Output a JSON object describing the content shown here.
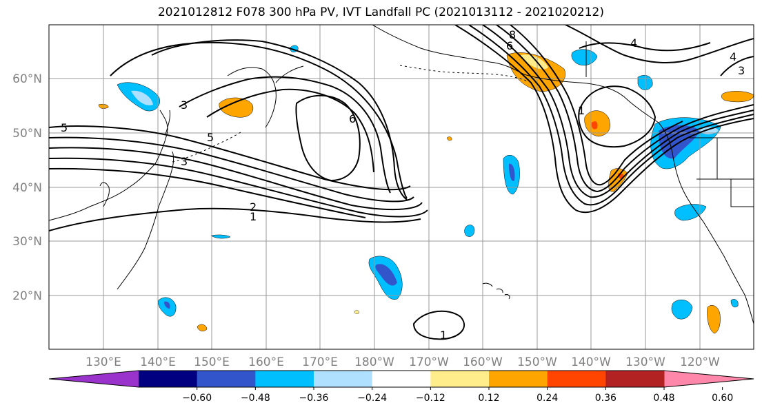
{
  "title": "2021012812 F078 300 hPa PV, IVT Landfall PC (2021013112 - 2021020212)",
  "map": {
    "projection": "PlateCarree",
    "lon_range": [
      120,
      250
    ],
    "lat_range": [
      10,
      70
    ],
    "lat_labels": [
      "20°N",
      "30°N",
      "40°N",
      "50°N",
      "60°N"
    ],
    "lon_labels": [
      "130°E",
      "140°E",
      "150°E",
      "160°E",
      "170°E",
      "180°W",
      "170°W",
      "160°W",
      "150°W",
      "140°W",
      "130°W",
      "120°W"
    ]
  },
  "contour_labels": [
    "5",
    "3",
    "5",
    "3",
    "2",
    "1",
    "6",
    "8",
    "6",
    "4",
    "4",
    "3",
    "1",
    "1"
  ],
  "colorbar": {
    "ticks": [
      "-0.60",
      "-0.48",
      "-0.36",
      "-0.24",
      "-0.12",
      "0.12",
      "0.24",
      "0.36",
      "0.48",
      "0.60"
    ],
    "colors": [
      "#9933cc",
      "#000080",
      "#3355cc",
      "#00bfff",
      "#b0e0ff",
      "#ffffff",
      "#ffec8b",
      "#ffa500",
      "#ff4500",
      "#b22222",
      "#ff88aa"
    ]
  }
}
